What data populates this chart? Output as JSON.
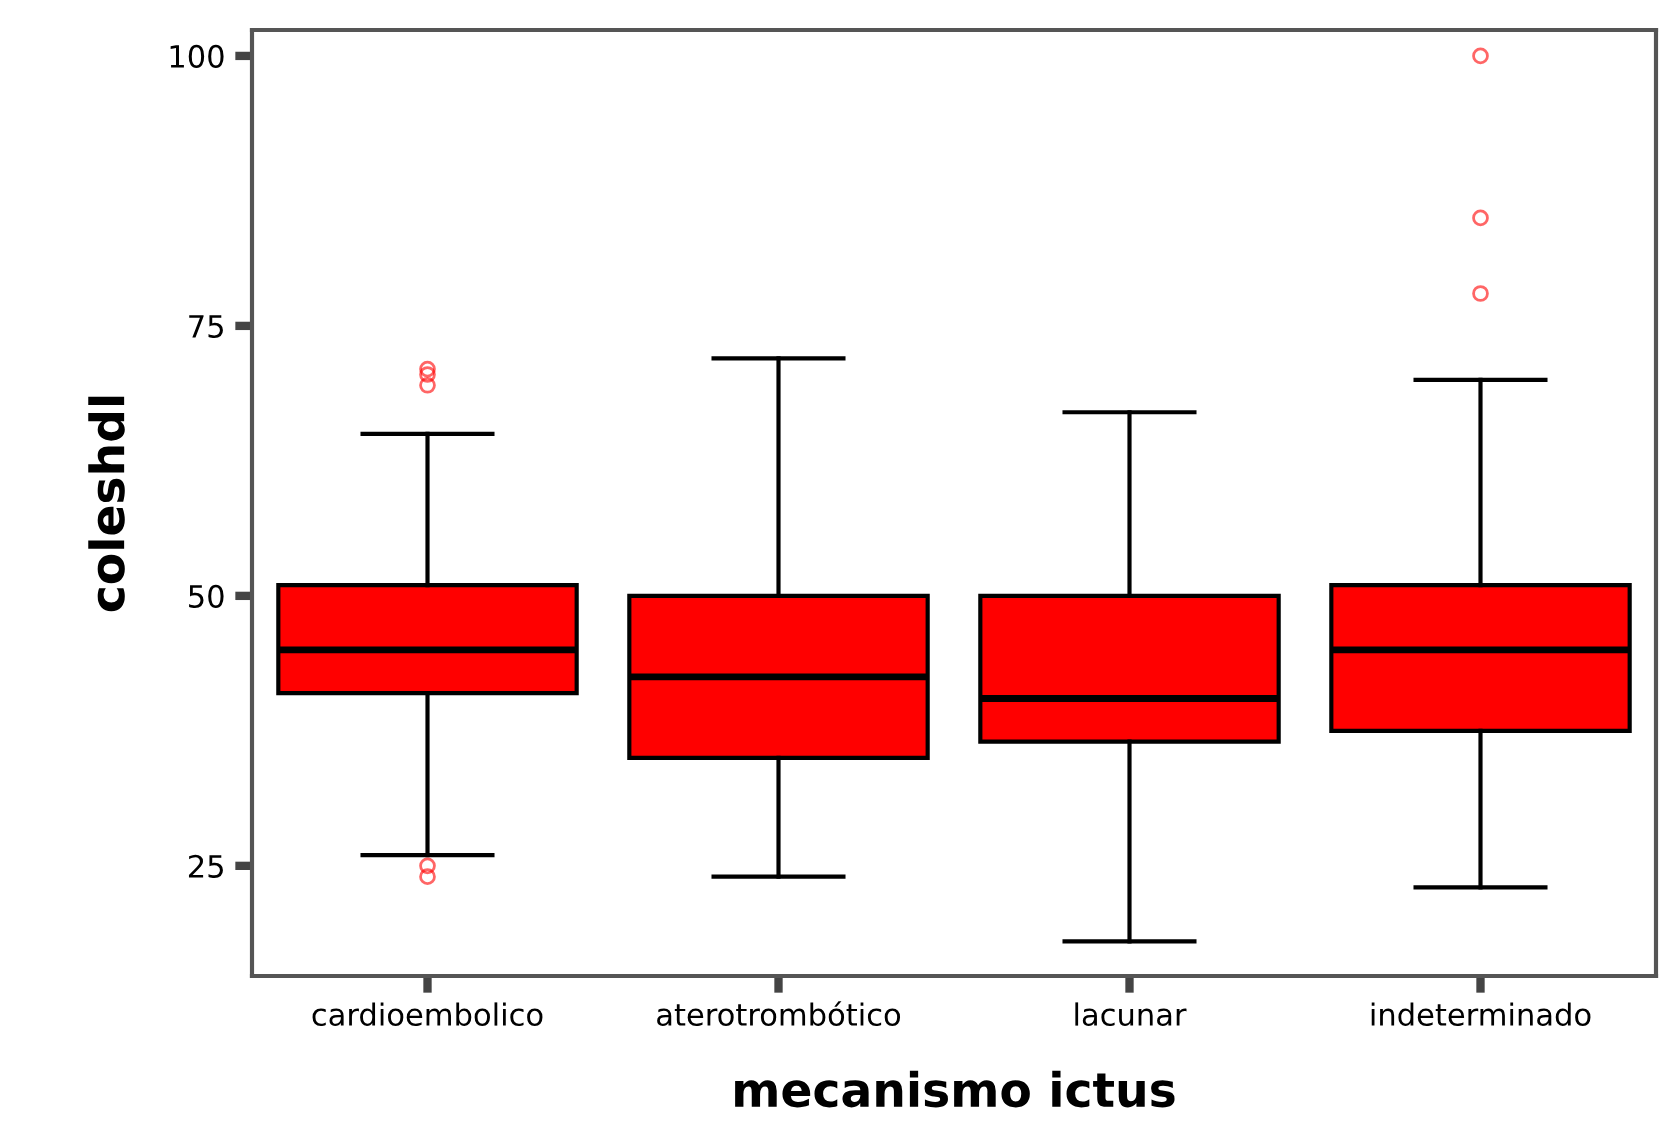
{
  "chart_data": {
    "type": "box",
    "xlabel": "mecanismo ictus",
    "ylabel": "coleshdl",
    "categories": [
      "cardioembolico",
      "aterotrombótico",
      "lacunar",
      "indeterminado"
    ],
    "boxes": [
      {
        "low": 26,
        "q1": 41,
        "median": 45,
        "q3": 51,
        "high": 65,
        "outliers": [
          69.5,
          70.5,
          71,
          24,
          25
        ]
      },
      {
        "low": 24,
        "q1": 35,
        "median": 42.5,
        "q3": 50,
        "high": 72
      },
      {
        "low": 18,
        "q1": 36.5,
        "median": 40.5,
        "q3": 50,
        "high": 67
      },
      {
        "low": 23,
        "q1": 37.5,
        "median": 45,
        "q3": 51,
        "high": 70,
        "outliers": [
          100,
          85,
          78
        ]
      }
    ],
    "color": "#ff0000",
    "ylim": [
      14.8,
      102.4
    ],
    "yticks": [
      25,
      50,
      75,
      100
    ],
    "grid": false
  }
}
